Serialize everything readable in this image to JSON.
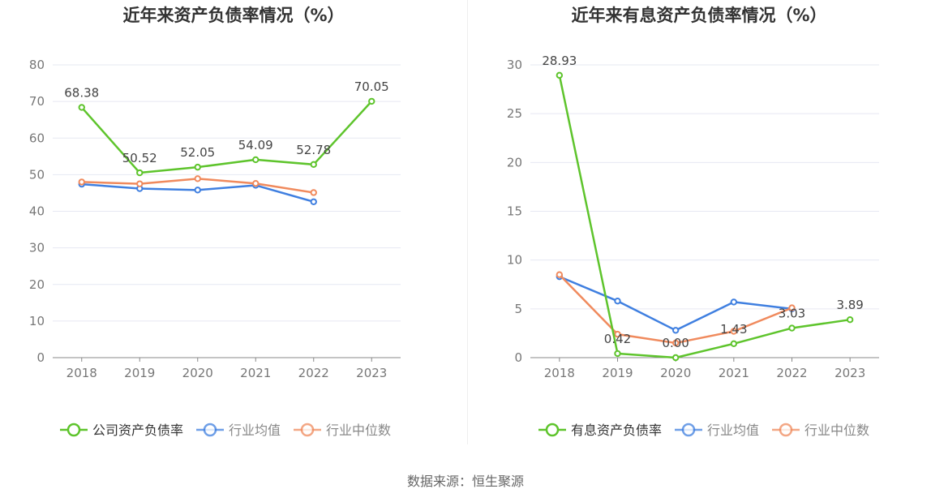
{
  "source": "数据来源：恒生聚源",
  "colors": {
    "company": "#5ec42c",
    "average": "#3f7fe0",
    "median": "#f08a5d"
  },
  "chart_data": [
    {
      "type": "line",
      "title": "近年来资产负债率情况（%）",
      "categories": [
        "2018",
        "2019",
        "2020",
        "2021",
        "2022",
        "2023"
      ],
      "ylim": [
        0,
        80
      ],
      "yticks": [
        0,
        10,
        20,
        30,
        40,
        50,
        60,
        70,
        80
      ],
      "grid": true,
      "legend_position": "bottom",
      "series": [
        {
          "name": "公司资产负债率",
          "color": "#5ec42c",
          "labeled": true,
          "values": [
            68.38,
            50.52,
            52.05,
            54.09,
            52.78,
            70.05
          ],
          "labels": [
            "68.38",
            "50.52",
            "52.05",
            "54.09",
            "52.78",
            "70.05"
          ]
        },
        {
          "name": "行业均值",
          "color": "#3f7fe0",
          "labeled": false,
          "values": [
            47.4,
            46.2,
            45.8,
            47.1,
            42.6,
            null
          ]
        },
        {
          "name": "行业中位数",
          "color": "#f08a5d",
          "labeled": false,
          "values": [
            48.0,
            47.5,
            48.9,
            47.6,
            45.1,
            null
          ]
        }
      ]
    },
    {
      "type": "line",
      "title": "近年来有息资产负债率情况（%）",
      "categories": [
        "2018",
        "2019",
        "2020",
        "2021",
        "2022",
        "2023"
      ],
      "ylim": [
        0,
        30
      ],
      "yticks": [
        0,
        5,
        10,
        15,
        20,
        25,
        30
      ],
      "grid": true,
      "legend_position": "bottom",
      "series": [
        {
          "name": "有息资产负债率",
          "color": "#5ec42c",
          "labeled": true,
          "values": [
            28.93,
            0.42,
            0.0,
            1.43,
            3.03,
            3.89
          ],
          "labels": [
            "28.93",
            "0.42",
            "0.00",
            "1.43",
            "3.03",
            "3.89"
          ]
        },
        {
          "name": "行业均值",
          "color": "#3f7fe0",
          "labeled": false,
          "values": [
            8.3,
            5.8,
            2.8,
            5.7,
            5.0,
            null
          ]
        },
        {
          "name": "行业中位数",
          "color": "#f08a5d",
          "labeled": false,
          "values": [
            8.5,
            2.4,
            1.5,
            2.7,
            5.1,
            null
          ]
        }
      ]
    }
  ]
}
